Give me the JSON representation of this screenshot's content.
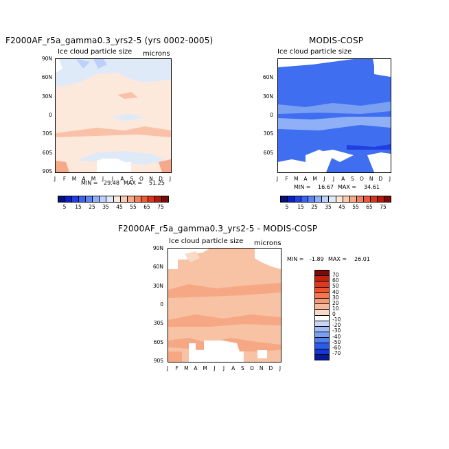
{
  "chart_data": [
    {
      "type": "heatmap",
      "title": "F2000AF_r5a_gamma0.3_yrs2-5 (yrs 0002-0005)",
      "subtitle": "Ice cloud particle size",
      "units": "microns",
      "x_ticks": [
        "J",
        "F",
        "M",
        "A",
        "M",
        "J",
        "J",
        "A",
        "S",
        "O",
        "N",
        "D",
        "J"
      ],
      "y_ticks": [
        "90N",
        "60N",
        "30N",
        "0",
        "30S",
        "60S",
        "90S"
      ],
      "ylim": [
        -90,
        90
      ],
      "min_label": "MIN =",
      "min": "29.48",
      "max_label": "MAX =",
      "max": "51.25"
    },
    {
      "type": "heatmap",
      "title": "MODIS-COSP",
      "subtitle": "Ice cloud particle size",
      "x_ticks": [
        "J",
        "F",
        "M",
        "A",
        "M",
        "J",
        "J",
        "A",
        "S",
        "O",
        "N",
        "D",
        "J"
      ],
      "y_ticks": [
        "60N",
        "30N",
        "0",
        "30S",
        "60S"
      ],
      "ylim": [
        -90,
        90
      ],
      "min_label": "MIN =",
      "min": "16.67",
      "max_label": "MAX =",
      "max": "34.61"
    },
    {
      "type": "heatmap",
      "title": "F2000AF_r5a_gamma0.3_yrs2-5 - MODIS-COSP",
      "subtitle": "Ice cloud particle size",
      "units": "microns",
      "x_ticks": [
        "J",
        "F",
        "M",
        "A",
        "M",
        "J",
        "J",
        "A",
        "S",
        "O",
        "N",
        "D",
        "J"
      ],
      "y_ticks": [
        "90N",
        "60N",
        "30N",
        "0",
        "30S",
        "60S",
        "90S"
      ],
      "ylim": [
        -90,
        90
      ],
      "min_label": "MIN =",
      "min": "-1.89",
      "max_label": "MAX =",
      "max": "26.01"
    }
  ],
  "colorbar_abs": {
    "labels": [
      "5",
      "15",
      "25",
      "35",
      "45",
      "55",
      "65",
      "75"
    ],
    "colors": [
      "#05107a",
      "#0a1fc0",
      "#1f3fe0",
      "#3a63ee",
      "#5b85f2",
      "#8fb0f6",
      "#bcd0f9",
      "#dfe9fc",
      "#fde7d6",
      "#f9cbb1",
      "#f5a98a",
      "#f1835f",
      "#ea5a34",
      "#d8341a",
      "#b11a0c",
      "#7d0906"
    ]
  },
  "colorbar_diff": {
    "labels": [
      "70",
      "60",
      "50",
      "40",
      "30",
      "20",
      "10",
      "0",
      "-10",
      "-20",
      "-30",
      "-40",
      "-50",
      "-60",
      "-70"
    ],
    "colors": [
      "#7d0906",
      "#c0220e",
      "#e0381c",
      "#ee5330",
      "#f27650",
      "#f59878",
      "#f8b89e",
      "#fad9c6",
      "#ffffff",
      "#c7d6f8",
      "#a2bcf5",
      "#7aa0f2",
      "#4f7ff0",
      "#2a5bea",
      "#1538d0",
      "#08189a"
    ]
  }
}
